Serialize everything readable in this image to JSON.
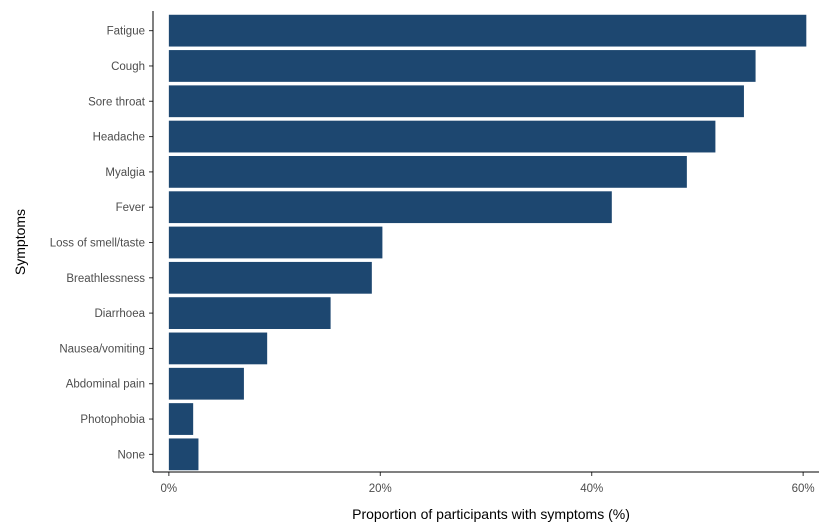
{
  "chart_data": {
    "type": "bar",
    "orientation": "horizontal",
    "categories": [
      "Fatigue",
      "Cough",
      "Sore throat",
      "Headache",
      "Myalgia",
      "Fever",
      "Loss of smell/taste",
      "Breathlessness",
      "Diarrhoea",
      "Nausea/vomiting",
      "Abdominal pain",
      "Photophobia",
      "None"
    ],
    "values": [
      60.3,
      55.5,
      54.4,
      51.7,
      49.0,
      41.9,
      20.2,
      19.2,
      15.3,
      9.3,
      7.1,
      2.3,
      2.8
    ],
    "xlabel": "Proportion of participants with symptoms (%)",
    "ylabel": "Symptoms",
    "xlim": [
      -1.5,
      61.5
    ],
    "xticks": [
      0,
      20,
      40,
      60
    ],
    "xtick_labels": [
      "0%",
      "20%",
      "40%",
      "60%"
    ],
    "bar_color": "#1d4770",
    "grid": false,
    "legend": "none"
  }
}
